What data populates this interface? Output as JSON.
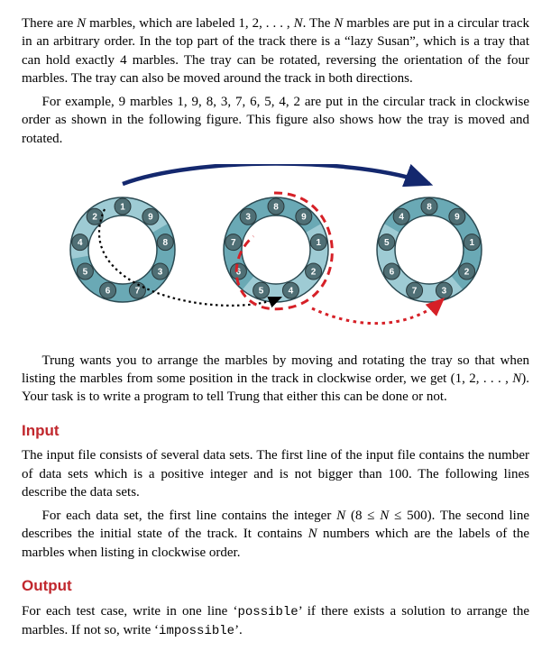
{
  "para1_a": "There are ",
  "para1_b": " marbles, which are labeled 1, 2, . . . , ",
  "para1_c": ". The ",
  "para1_d": " marbles are put in a circular track in an arbitrary order. In the top part of the track there is a “lazy Susan”, which is a tray that can hold exactly 4 marbles. The tray can be rotated, reversing the orientation of the four marbles. The tray can also be moved around the track in both directions.",
  "para2": "For example, 9 marbles 1, 9, 8, 3, 7, 6, 5, 4, 2 are put in the circular track in clockwise order as shown in the following figure. This figure also shows how the tray is moved and rotated.",
  "para3_a": "Trung wants you to arrange the marbles by moving and rotating the tray so that when listing the marbles from some position in the track in clockwise order, we get (1, 2, . . . , ",
  "para3_b": "). Your task is to write a program to tell Trung that either this can be done or not.",
  "section_input": "Input",
  "para4": "The input file consists of several data sets. The first line of the input file contains the number of data sets which is a positive integer and is not bigger than 100. The following lines describe the data sets.",
  "para5_a": "For each data set, the first line contains the integer ",
  "para5_b": " (8 ≤ ",
  "para5_c": " ≤ 500). The second line describes the initial state of the track. It contains ",
  "para5_d": " numbers which are the labels of the marbles when listing in clockwise order.",
  "section_output": "Output",
  "para6_a": "For each test case, write in one line ‘",
  "para6_b": "’ if there exists a solution to arrange the marbles. If not so, write ‘",
  "para6_c": "’.",
  "code_possible": "possible",
  "code_impossible": "impossible",
  "var_N": "N",
  "figure": {
    "ring_fill": "#6aa9b5",
    "ring_stroke": "#2b4a52",
    "marble_fill": "#4f6f75",
    "marble_stroke": "#28383b",
    "inner_ring_stroke": "#2b4a52",
    "tray_fill": "#9ecbd4",
    "arrow_solid": "#14286e",
    "arrow_dotted_black": "#000000",
    "arrow_dashed_red": "#d62027",
    "rings": [
      {
        "labels": [
          "1",
          "9",
          "8",
          "3",
          "7",
          "6",
          "5",
          "4",
          "2"
        ],
        "tray_start": 7
      },
      {
        "labels": [
          "8",
          "9",
          "1",
          "2",
          "4",
          "5",
          "6",
          "7",
          "3"
        ],
        "tray_start": 2
      },
      {
        "labels": [
          "8",
          "9",
          "1",
          "2",
          "3",
          "7",
          "6",
          "5",
          "4"
        ],
        "tray_start": 4
      }
    ]
  }
}
